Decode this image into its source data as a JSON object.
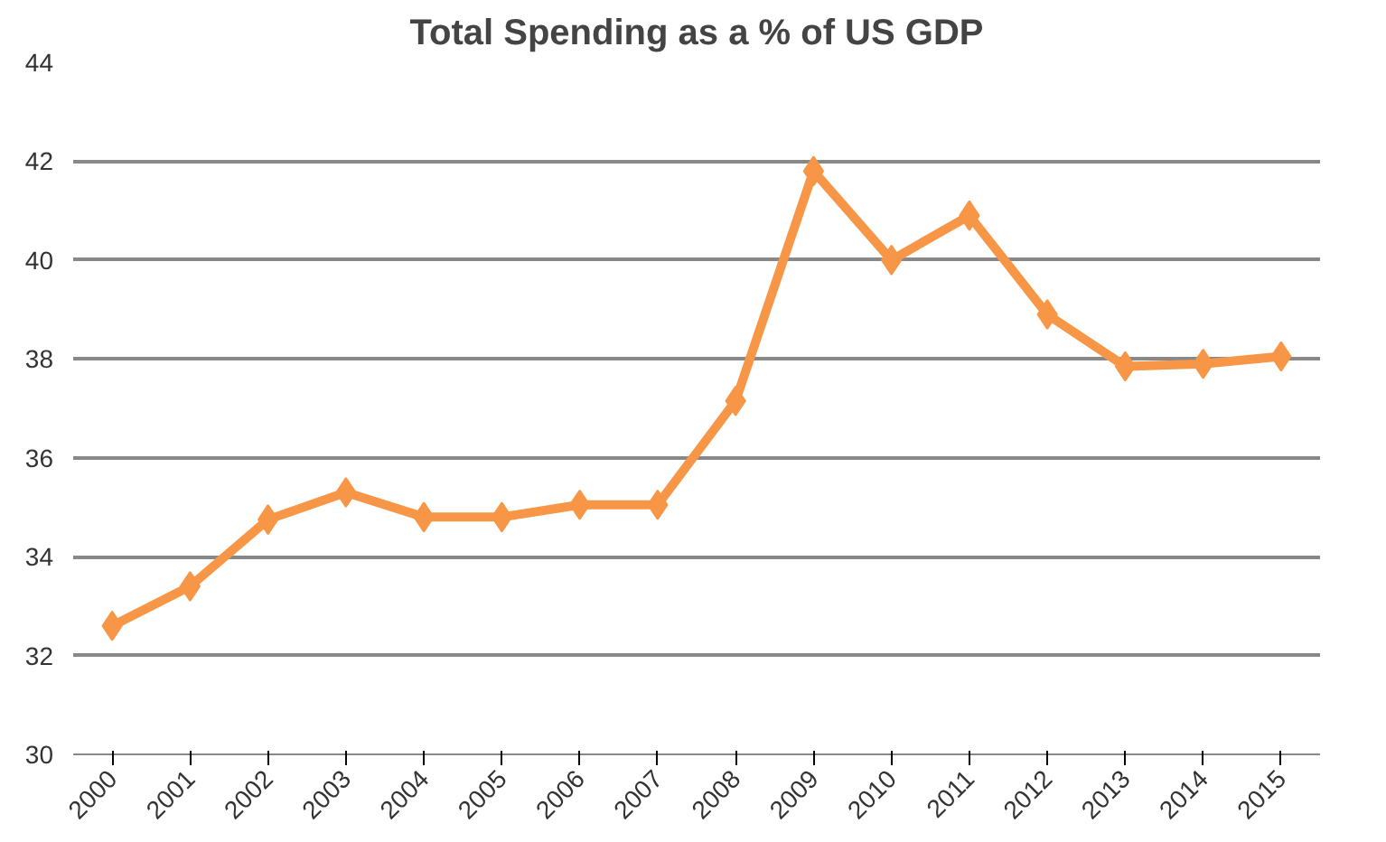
{
  "chart_data": {
    "type": "line",
    "title": "Total Spending as a % of US GDP",
    "categories": [
      "2000",
      "2001",
      "2002",
      "2003",
      "2004",
      "2005",
      "2006",
      "2007",
      "2008",
      "2009",
      "2010",
      "2011",
      "2012",
      "2013",
      "2014",
      "2015"
    ],
    "series": [
      {
        "color": "#f79646",
        "values": [
          32.6,
          33.4,
          34.75,
          35.3,
          34.8,
          34.8,
          35.05,
          35.05,
          37.15,
          41.8,
          40.0,
          40.9,
          38.9,
          37.85,
          37.9,
          38.05
        ]
      }
    ],
    "ylim": [
      30,
      44
    ],
    "yticks": [
      30,
      32,
      34,
      36,
      38,
      40,
      42,
      44
    ],
    "grid": "y",
    "marker": "diamond",
    "line_style": "solid"
  }
}
